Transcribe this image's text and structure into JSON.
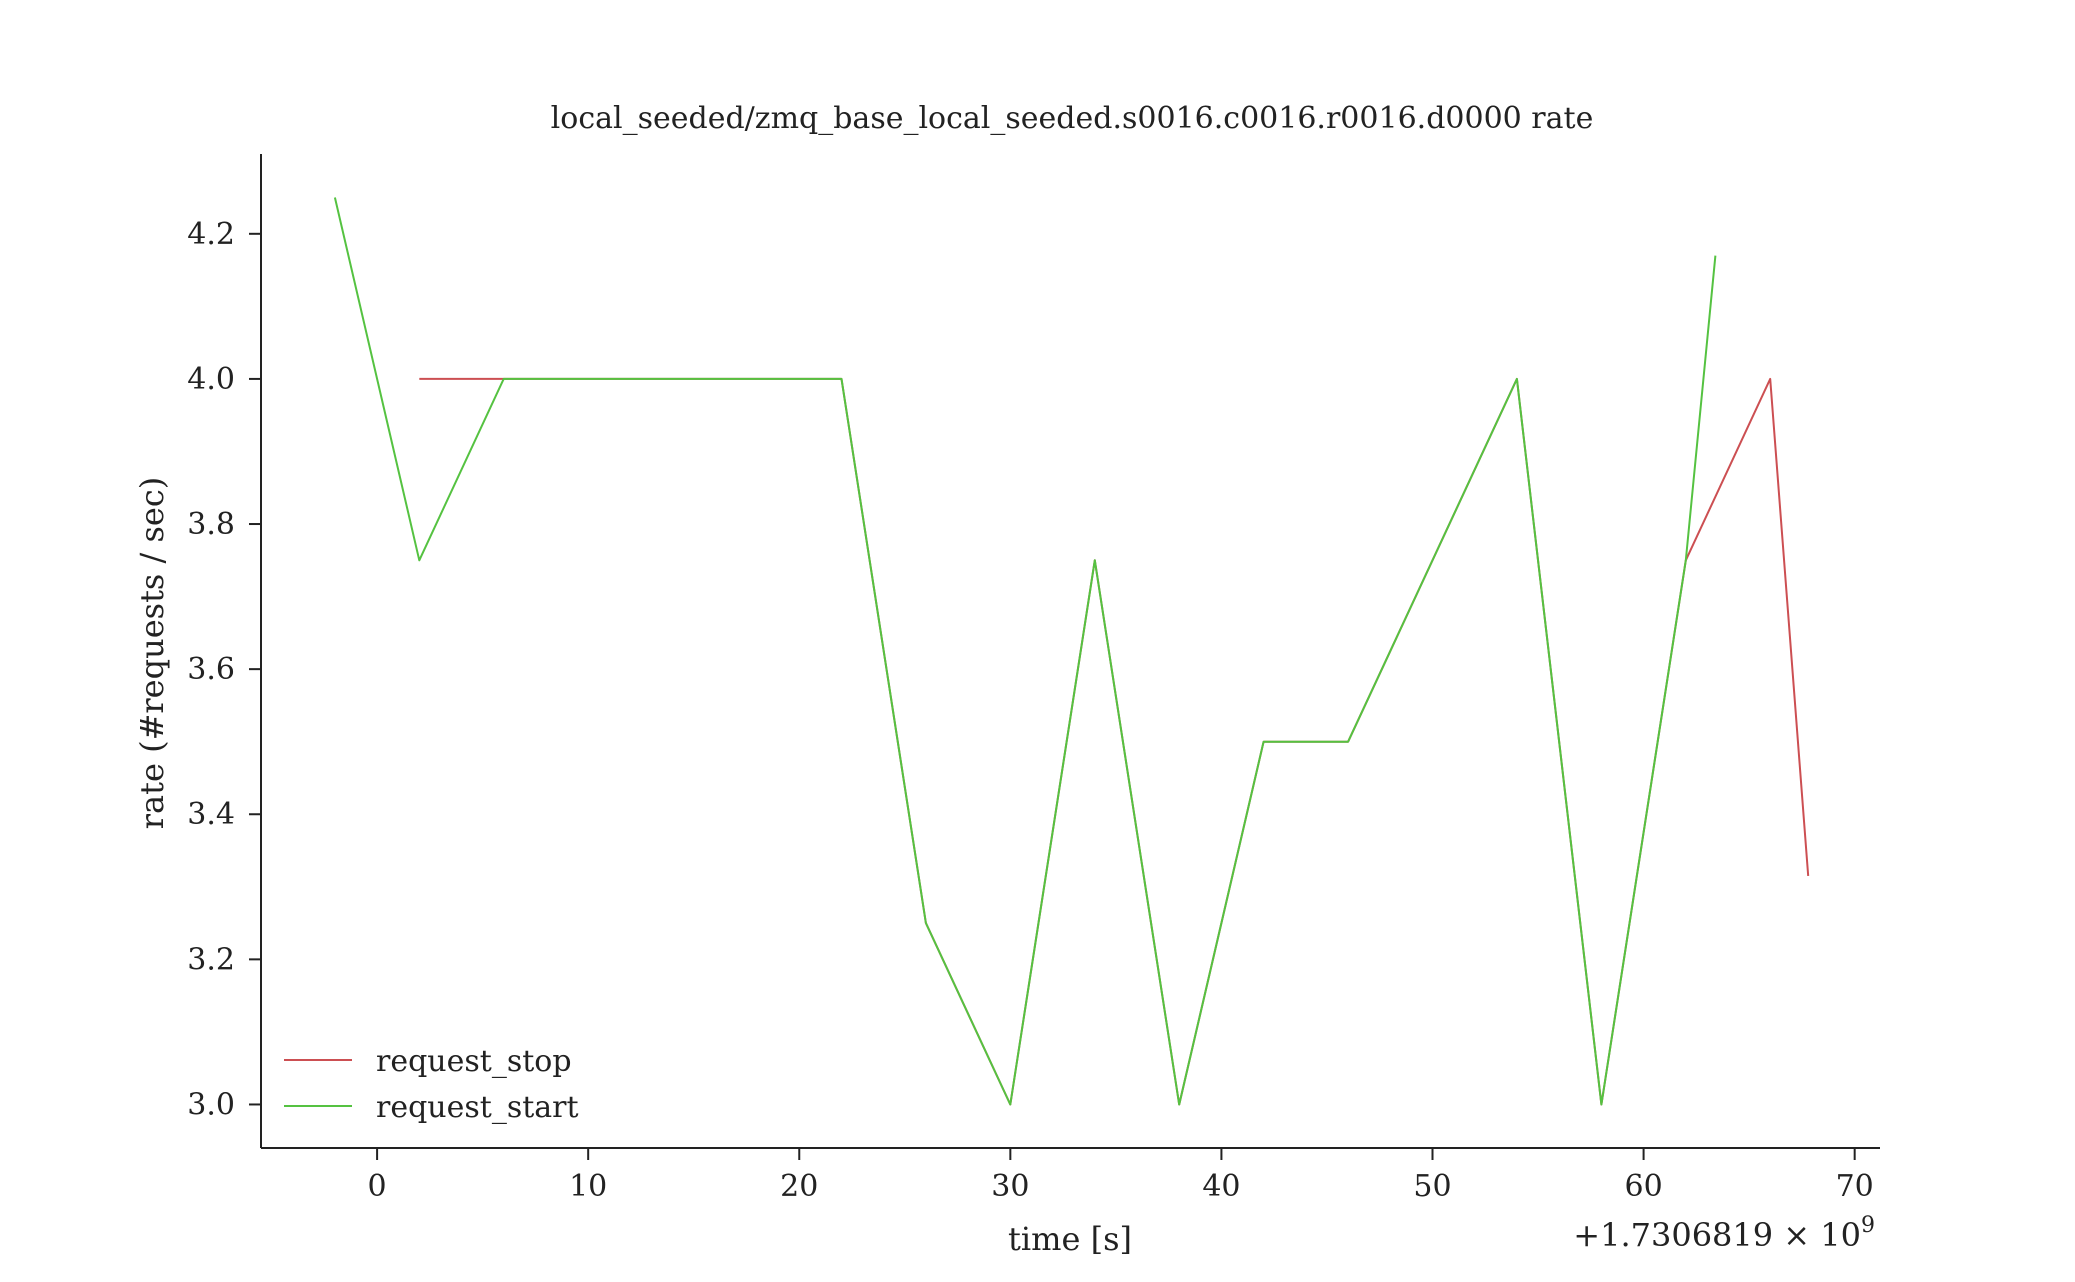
{
  "chart_data": {
    "type": "line",
    "title": "local_seeded/zmq_base_local_seeded.s0016.c0016.r0016.d0000 rate",
    "xlabel": "time [s]",
    "ylabel": "rate (#requests / sec)",
    "x_offset_label": "+1.7306819 × 10",
    "x_offset_exponent": "9",
    "xlim": [
      -5.5,
      71.2
    ],
    "ylim": [
      2.94,
      4.31
    ],
    "x_ticks": [
      0,
      10,
      20,
      30,
      40,
      50,
      60,
      70
    ],
    "x_tick_labels": [
      "0",
      "10",
      "20",
      "30",
      "40",
      "50",
      "60",
      "70"
    ],
    "y_ticks": [
      3.0,
      3.2,
      3.4,
      3.6,
      3.8,
      4.0,
      4.2
    ],
    "y_tick_labels": [
      "3.0",
      "3.2",
      "3.4",
      "3.6",
      "3.8",
      "4.0",
      "4.2"
    ],
    "grid": false,
    "legend_position": "bottom-left",
    "series": [
      {
        "name": "request_stop",
        "color": "#cc4f52",
        "x": [
          2,
          6,
          22,
          26,
          30,
          34,
          38,
          42,
          46,
          54,
          58,
          62,
          66,
          67.8
        ],
        "y": [
          4.0,
          4.0,
          4.0,
          3.25,
          3.0,
          3.75,
          3.0,
          3.5,
          3.5,
          4.0,
          3.0,
          3.75,
          4.0,
          3.315
        ]
      },
      {
        "name": "request_start",
        "color": "#55c241",
        "x": [
          -2,
          2,
          6,
          22,
          26,
          30,
          34,
          38,
          42,
          46,
          54,
          58,
          62,
          63.4
        ],
        "y": [
          4.25,
          3.75,
          4.0,
          4.0,
          3.25,
          3.0,
          3.75,
          3.0,
          3.5,
          3.5,
          4.0,
          3.0,
          3.75,
          4.17
        ]
      }
    ]
  }
}
